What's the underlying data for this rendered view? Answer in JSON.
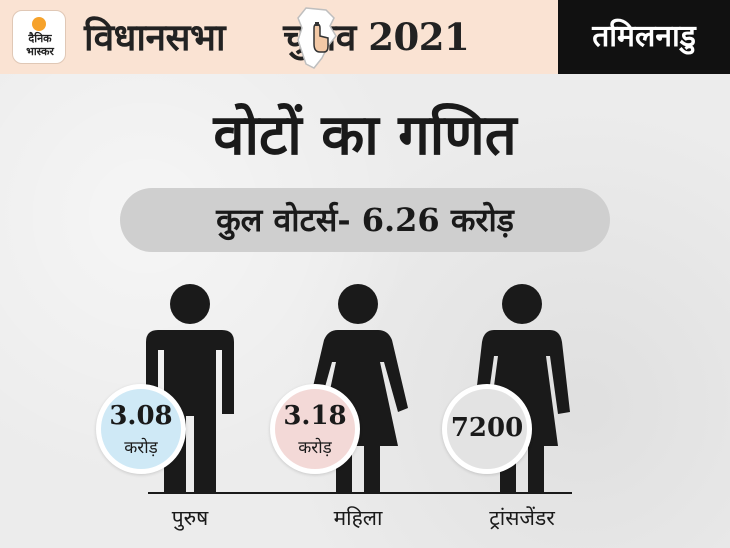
{
  "header": {
    "logo_line1": "दैनिक",
    "logo_line2": "भास्कर",
    "title_part1": "विधानसभा",
    "title_part2": "चुनाव 2021",
    "state": "तमिलनाडु",
    "map_icon": "map-vote-icon"
  },
  "main": {
    "title": "वोटों का गणित",
    "total_label": "कुल वोटर्स- 6.26 करोड़"
  },
  "figures": [
    {
      "icon": "male-figure-icon",
      "value": "3.08",
      "unit": "करोड़",
      "caption": "पुरुष",
      "bubble_color": "#cfe9f6"
    },
    {
      "icon": "female-figure-icon",
      "value": "3.18",
      "unit": "करोड़",
      "caption": "महिला",
      "bubble_color": "#f3d9d7"
    },
    {
      "icon": "transgender-figure-icon",
      "value": "7200",
      "unit": "",
      "caption": "ट्रांसजेंडर",
      "bubble_color": "#e3e3e3"
    }
  ],
  "colors": {
    "header_bg": "#fae3d3",
    "state_bg": "#111111",
    "pill_bg": "#cfcfcf",
    "figure": "#1a1a1a"
  }
}
